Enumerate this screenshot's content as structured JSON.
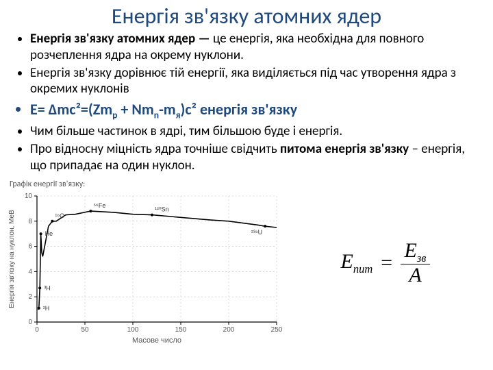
{
  "title": {
    "text": "Енергія зв'язку атомних ядер",
    "color": "#1f497d"
  },
  "bullets": {
    "b1_bold": "Енергія зв'язку атомних ядер —",
    "b1_rest": " це енергія, яка необхідна для повного розчеплення ядра на окрему нуклони.",
    "b2": "Енергія зв'язку дорівнює тій енергії, яка виділяється під час утворення ядра з окремих нуклонів",
    "b3_prefix": "Е= Δmc²=(Zm",
    "b3_sub1": "p",
    "b3_mid1": " + Nm",
    "b3_sub2": "n",
    "b3_mid2": "-m",
    "b3_sub3": "я",
    "b3_suffix": ")c²   енергія зв'язку",
    "b3_color": "#1f497d",
    "b4": "Чим більше частинок в ядрі, тим більшою буде і енергія.",
    "b5_a": "Про відносну міцність ядра точніше свідчить ",
    "b5_b": "питома енергія зв'язку",
    "b5_c": " – енергія, що припадає на один нуклон."
  },
  "chart": {
    "caption": "Графік енергії зв'язку:",
    "xlabel": "Масове число",
    "ylabel": "Енергія зв'язку на нуклон, МеВ",
    "xlim": [
      0,
      250
    ],
    "xtick_step": 50,
    "ylim": [
      0,
      10
    ],
    "ytick_step": 2,
    "grid_color": "#bfbfbf",
    "axis_color": "#000000",
    "text_color": "#555555",
    "line_color": "#000000",
    "background": "#ffffff",
    "curve": [
      [
        1,
        1.0
      ],
      [
        2,
        1.1
      ],
      [
        3,
        2.7
      ],
      [
        4,
        7.0
      ],
      [
        5,
        5.5
      ],
      [
        6,
        5.2
      ],
      [
        7,
        5.6
      ],
      [
        9,
        6.4
      ],
      [
        12,
        7.6
      ],
      [
        16,
        8.0
      ],
      [
        20,
        8.0
      ],
      [
        30,
        8.5
      ],
      [
        40,
        8.55
      ],
      [
        56,
        8.8
      ],
      [
        80,
        8.7
      ],
      [
        100,
        8.55
      ],
      [
        120,
        8.5
      ],
      [
        150,
        8.3
      ],
      [
        180,
        8.1
      ],
      [
        200,
        8.0
      ],
      [
        230,
        7.7
      ],
      [
        238,
        7.6
      ],
      [
        250,
        7.5
      ]
    ],
    "annot": [
      {
        "A": 2,
        "E": 1.1,
        "label": "²H"
      },
      {
        "A": 3,
        "E": 2.7,
        "label": "³H"
      },
      {
        "A": 4,
        "E": 7.0,
        "label": "He"
      },
      {
        "A": 16,
        "E": 8.0,
        "label": "¹⁶O"
      },
      {
        "A": 56,
        "E": 8.8,
        "label": "⁵⁶Fe"
      },
      {
        "A": 120,
        "E": 8.5,
        "label": "¹²⁰Sn"
      },
      {
        "A": 238,
        "E": 7.6,
        "label": "²³⁸U"
      }
    ]
  },
  "equation": {
    "lhs_main": "E",
    "lhs_sub": "пит",
    "eq": "=",
    "num_main": "E",
    "num_sub": "зв",
    "den": "A"
  }
}
